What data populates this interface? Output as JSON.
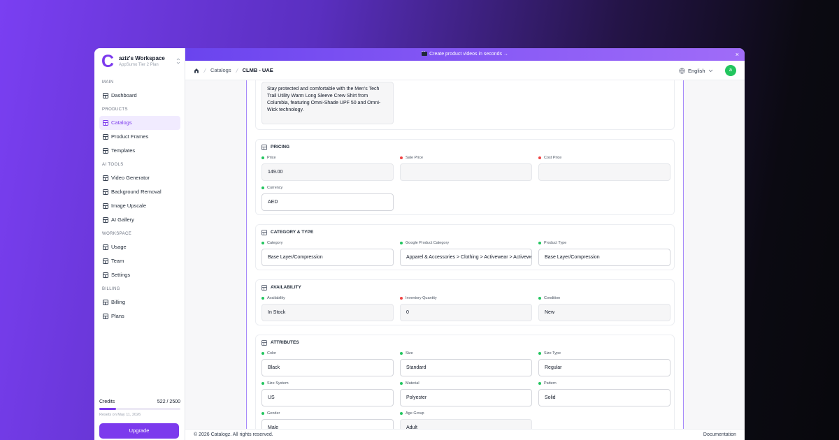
{
  "banner": {
    "text": "Create product videos in seconds →",
    "close": "×"
  },
  "sidebar": {
    "logo": "C",
    "workspace": "aziz's Workspace",
    "plan": "AppSumo Tier 2 Plan",
    "active": "Catalogs",
    "sections": [
      {
        "title": "MAIN",
        "items": [
          "Dashboard"
        ]
      },
      {
        "title": "PRODUCTS",
        "items": [
          "Catalogs",
          "Product Frames",
          "Templates"
        ]
      },
      {
        "title": "AI TOOLS",
        "items": [
          "Video Generator",
          "Background Removal",
          "Image Upscale",
          "AI Gallery"
        ]
      },
      {
        "title": "WORKSPACE",
        "items": [
          "Usage",
          "Team",
          "Settings"
        ]
      },
      {
        "title": "BILLING",
        "items": [
          "Billing",
          "Plans"
        ]
      }
    ],
    "credits": {
      "label": "Credits",
      "value": "522 / 2500",
      "note": "Resets on May 11, 2026"
    },
    "upgrade": "Upgrade"
  },
  "header": {
    "breadcrumb": [
      "Catalogs",
      "CLMB - UAE"
    ],
    "language": "English",
    "avatar": "a"
  },
  "description": "Stay protected and comfortable with the Men's Tech Trail Utility Warm Long Sleeve Crew Shirt from Columbia, featuring Omni-Shade UPF 50 and Omni-Wick technology.",
  "sections": [
    {
      "title": "PRICING",
      "fields": [
        {
          "label": "Price",
          "value": "149.00",
          "dot": "#22c55e",
          "style": "filled"
        },
        {
          "label": "Sale Price",
          "dot": "#ef4444",
          "style": "filled"
        },
        {
          "label": "Cost Price",
          "dot": "#ef4444",
          "style": "filled"
        },
        {
          "label": "Currency",
          "value": "AED",
          "dot": "#22c55e",
          "style": "outlined"
        }
      ]
    },
    {
      "title": "CATEGORY & TYPE",
      "fields": [
        {
          "label": "Category",
          "value": "Base Layer/Compression",
          "dot": "#22c55e",
          "style": "outlined"
        },
        {
          "label": "Google Product Category",
          "value": "Apparel & Accessories > Clothing > Activewear > Activewear Tops",
          "dot": "#22c55e",
          "style": "outlined"
        },
        {
          "label": "Product Type",
          "value": "Base Layer/Compression",
          "dot": "#22c55e",
          "style": "outlined"
        }
      ]
    },
    {
      "title": "AVAILABILITY",
      "fields": [
        {
          "label": "Availability",
          "value": "In Stock",
          "dot": "#22c55e",
          "style": "filled"
        },
        {
          "label": "Inventory Quantity",
          "value": "0",
          "dot": "#ef4444",
          "style": "filled"
        },
        {
          "label": "Condition",
          "value": "New",
          "dot": "#22c55e",
          "style": "filled"
        }
      ]
    },
    {
      "title": "ATTRIBUTES",
      "fields": [
        {
          "label": "Color",
          "value": "Black",
          "dot": "#22c55e",
          "style": "outlined"
        },
        {
          "label": "Size",
          "value": "Standard",
          "dot": "#22c55e",
          "style": "outlined"
        },
        {
          "label": "Size Type",
          "value": "Regular",
          "dot": "#22c55e",
          "style": "outlined"
        },
        {
          "label": "Size System",
          "value": "US",
          "dot": "#22c55e",
          "style": "outlined"
        },
        {
          "label": "Material",
          "value": "Polyester",
          "dot": "#22c55e",
          "style": "outlined"
        },
        {
          "label": "Pattern",
          "value": "Solid",
          "dot": "#22c55e",
          "style": "outlined"
        },
        {
          "label": "Gender",
          "value": "Male",
          "dot": "#22c55e",
          "style": "outlined"
        },
        {
          "label": "Age Group",
          "value": "Adult",
          "dot": "#22c55e",
          "style": "filled"
        }
      ]
    }
  ],
  "footer": {
    "copyright": "© 2026 Catalogz. All rights reserved.",
    "link": "Documentation"
  }
}
